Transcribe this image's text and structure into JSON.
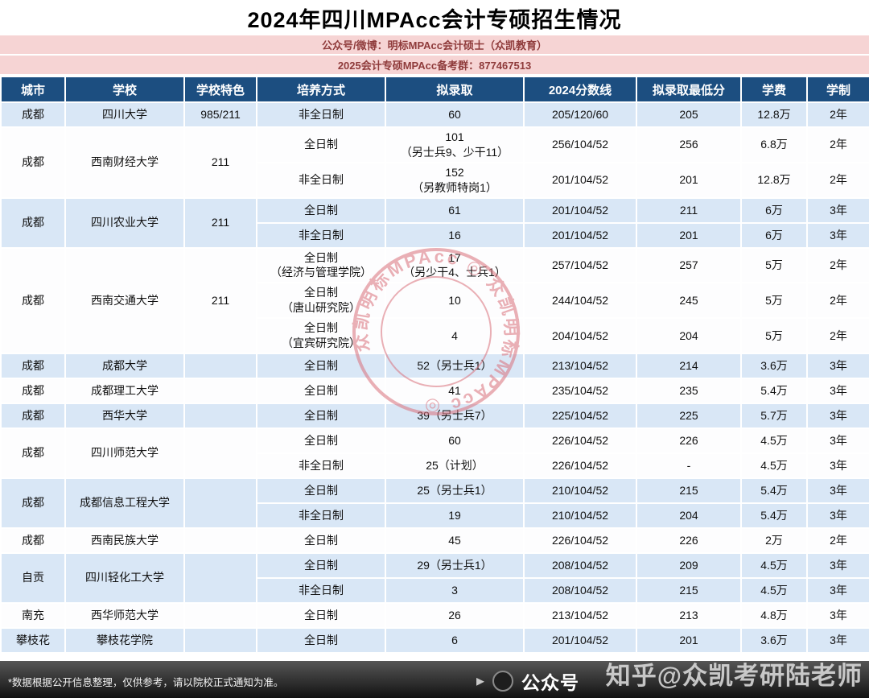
{
  "page": {
    "title": "2024年四川MPAcc会计专硕招生情况",
    "banner_line1": "公众号/微博：明标MPAcc会计硕士（众凯教育）",
    "banner_line2": "2025会计专硕MPAcc备考群：877467513"
  },
  "colors": {
    "header_bg": "#1C4E80",
    "row_blue": "#D9E7F6",
    "row_white": "#FDFDFE",
    "banner_bg": "#F6D4D4",
    "banner_text": "#8F3B3B",
    "footer_bg": "#1a1a1a",
    "stamp_red": "#D9707B"
  },
  "table": {
    "headers": [
      "城市",
      "学校",
      "学校特色",
      "培养方式",
      "拟录取",
      "2024分数线",
      "拟录取最低分",
      "学费",
      "学制"
    ],
    "groups": [
      {
        "city": "成都",
        "school": "四川大学",
        "feature": "985/211",
        "rows": [
          {
            "mode": "非全日制",
            "mode2": "",
            "admit": "60",
            "admit2": "",
            "score": "205/120/60",
            "min": "205",
            "tuition": "12.8万",
            "duration": "2年"
          }
        ]
      },
      {
        "city": "成都",
        "school": "西南财经大学",
        "feature": "211",
        "rows": [
          {
            "mode": "全日制",
            "mode2": "",
            "admit": "101",
            "admit2": "（另士兵9、少干11）",
            "score": "256/104/52",
            "min": "256",
            "tuition": "6.8万",
            "duration": "2年"
          },
          {
            "mode": "非全日制",
            "mode2": "",
            "admit": "152",
            "admit2": "（另教师特岗1）",
            "score": "201/104/52",
            "min": "201",
            "tuition": "12.8万",
            "duration": "2年"
          }
        ]
      },
      {
        "city": "成都",
        "school": "四川农业大学",
        "feature": "211",
        "rows": [
          {
            "mode": "全日制",
            "mode2": "",
            "admit": "61",
            "admit2": "",
            "score": "201/104/52",
            "min": "211",
            "tuition": "6万",
            "duration": "3年"
          },
          {
            "mode": "非全日制",
            "mode2": "",
            "admit": "16",
            "admit2": "",
            "score": "201/104/52",
            "min": "201",
            "tuition": "6万",
            "duration": "3年"
          }
        ]
      },
      {
        "city": "成都",
        "school": "西南交通大学",
        "feature": "211",
        "rows": [
          {
            "mode": "全日制",
            "mode2": "（经济与管理学院）",
            "admit": "17",
            "admit2": "（另少干4、士兵1）",
            "score": "257/104/52",
            "min": "257",
            "tuition": "5万",
            "duration": "2年"
          },
          {
            "mode": "全日制",
            "mode2": "（唐山研究院）",
            "admit": "10",
            "admit2": "",
            "score": "244/104/52",
            "min": "245",
            "tuition": "5万",
            "duration": "2年"
          },
          {
            "mode": "全日制",
            "mode2": "（宜宾研究院）",
            "admit": "4",
            "admit2": "",
            "score": "204/104/52",
            "min": "204",
            "tuition": "5万",
            "duration": "2年"
          }
        ]
      },
      {
        "city": "成都",
        "school": "成都大学",
        "feature": "",
        "rows": [
          {
            "mode": "全日制",
            "mode2": "",
            "admit": "52（另士兵1）",
            "admit2": "",
            "score": "213/104/52",
            "min": "214",
            "tuition": "3.6万",
            "duration": "3年"
          }
        ]
      },
      {
        "city": "成都",
        "school": "成都理工大学",
        "feature": "",
        "rows": [
          {
            "mode": "全日制",
            "mode2": "",
            "admit": "41",
            "admit2": "",
            "score": "235/104/52",
            "min": "235",
            "tuition": "5.4万",
            "duration": "3年"
          }
        ]
      },
      {
        "city": "成都",
        "school": "西华大学",
        "feature": "",
        "rows": [
          {
            "mode": "全日制",
            "mode2": "",
            "admit": "39（另士兵7）",
            "admit2": "",
            "score": "225/104/52",
            "min": "225",
            "tuition": "5.7万",
            "duration": "3年"
          }
        ]
      },
      {
        "city": "成都",
        "school": "四川师范大学",
        "feature": "",
        "rows": [
          {
            "mode": "全日制",
            "mode2": "",
            "admit": "60",
            "admit2": "",
            "score": "226/104/52",
            "min": "226",
            "tuition": "4.5万",
            "duration": "3年"
          },
          {
            "mode": "非全日制",
            "mode2": "",
            "admit": "25（计划）",
            "admit2": "",
            "score": "226/104/52",
            "min": "-",
            "tuition": "4.5万",
            "duration": "3年"
          }
        ]
      },
      {
        "city": "成都",
        "school": "成都信息工程大学",
        "feature": "",
        "rows": [
          {
            "mode": "全日制",
            "mode2": "",
            "admit": "25（另士兵1）",
            "admit2": "",
            "score": "210/104/52",
            "min": "215",
            "tuition": "5.4万",
            "duration": "3年"
          },
          {
            "mode": "非全日制",
            "mode2": "",
            "admit": "19",
            "admit2": "",
            "score": "210/104/52",
            "min": "204",
            "tuition": "5.4万",
            "duration": "3年"
          }
        ]
      },
      {
        "city": "成都",
        "school": "西南民族大学",
        "feature": "",
        "rows": [
          {
            "mode": "全日制",
            "mode2": "",
            "admit": "45",
            "admit2": "",
            "score": "226/104/52",
            "min": "226",
            "tuition": "2万",
            "duration": "2年"
          }
        ]
      },
      {
        "city": "自贡",
        "school": "四川轻化工大学",
        "feature": "",
        "rows": [
          {
            "mode": "全日制",
            "mode2": "",
            "admit": "29（另士兵1）",
            "admit2": "",
            "score": "208/104/52",
            "min": "209",
            "tuition": "4.5万",
            "duration": "3年"
          },
          {
            "mode": "非全日制",
            "mode2": "",
            "admit": "3",
            "admit2": "",
            "score": "208/104/52",
            "min": "215",
            "tuition": "4.5万",
            "duration": "3年"
          }
        ]
      },
      {
        "city": "南充",
        "school": "西华师范大学",
        "feature": "",
        "rows": [
          {
            "mode": "全日制",
            "mode2": "",
            "admit": "26",
            "admit2": "",
            "score": "213/104/52",
            "min": "213",
            "tuition": "4.8万",
            "duration": "3年"
          }
        ]
      },
      {
        "city": "攀枝花",
        "school": "攀枝花学院",
        "feature": "",
        "rows": [
          {
            "mode": "全日制",
            "mode2": "",
            "admit": "6",
            "admit2": "",
            "score": "201/104/52",
            "min": "201",
            "tuition": "3.6万",
            "duration": "3年"
          }
        ]
      }
    ]
  },
  "stamp": {
    "text": "众凯明标MPAcc ◎ 众凯明标MPAcc ◎"
  },
  "footer": {
    "note": "*数据根据公开信息整理，仅供参考，请以院校正式通知为准。",
    "account_label": "公众号",
    "watermark": "知乎@众凯考研陆老师"
  }
}
